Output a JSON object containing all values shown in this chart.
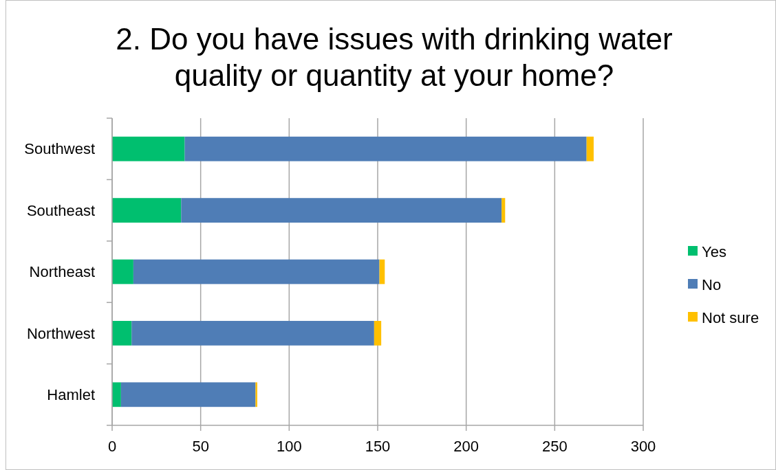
{
  "chart_data": {
    "type": "bar",
    "orientation": "horizontal",
    "stacked": true,
    "title": "2. Do you have issues with drinking water quality or quantity at your home?",
    "categories": [
      "Southwest",
      "Southeast",
      "Northeast",
      "Northwest",
      "Hamlet"
    ],
    "series": [
      {
        "name": "Yes",
        "color": "#00bf6f",
        "values": [
          41,
          39,
          12,
          11,
          5
        ]
      },
      {
        "name": "No",
        "color": "#4f7db6",
        "values": [
          227,
          181,
          139,
          137,
          76
        ]
      },
      {
        "name": "Not sure",
        "color": "#ffc000",
        "values": [
          4,
          2,
          3,
          4,
          1
        ]
      }
    ],
    "xlim": [
      0,
      300
    ],
    "xticks": [
      0,
      50,
      100,
      150,
      200,
      250,
      300
    ],
    "grid": "x",
    "legend": "right"
  }
}
